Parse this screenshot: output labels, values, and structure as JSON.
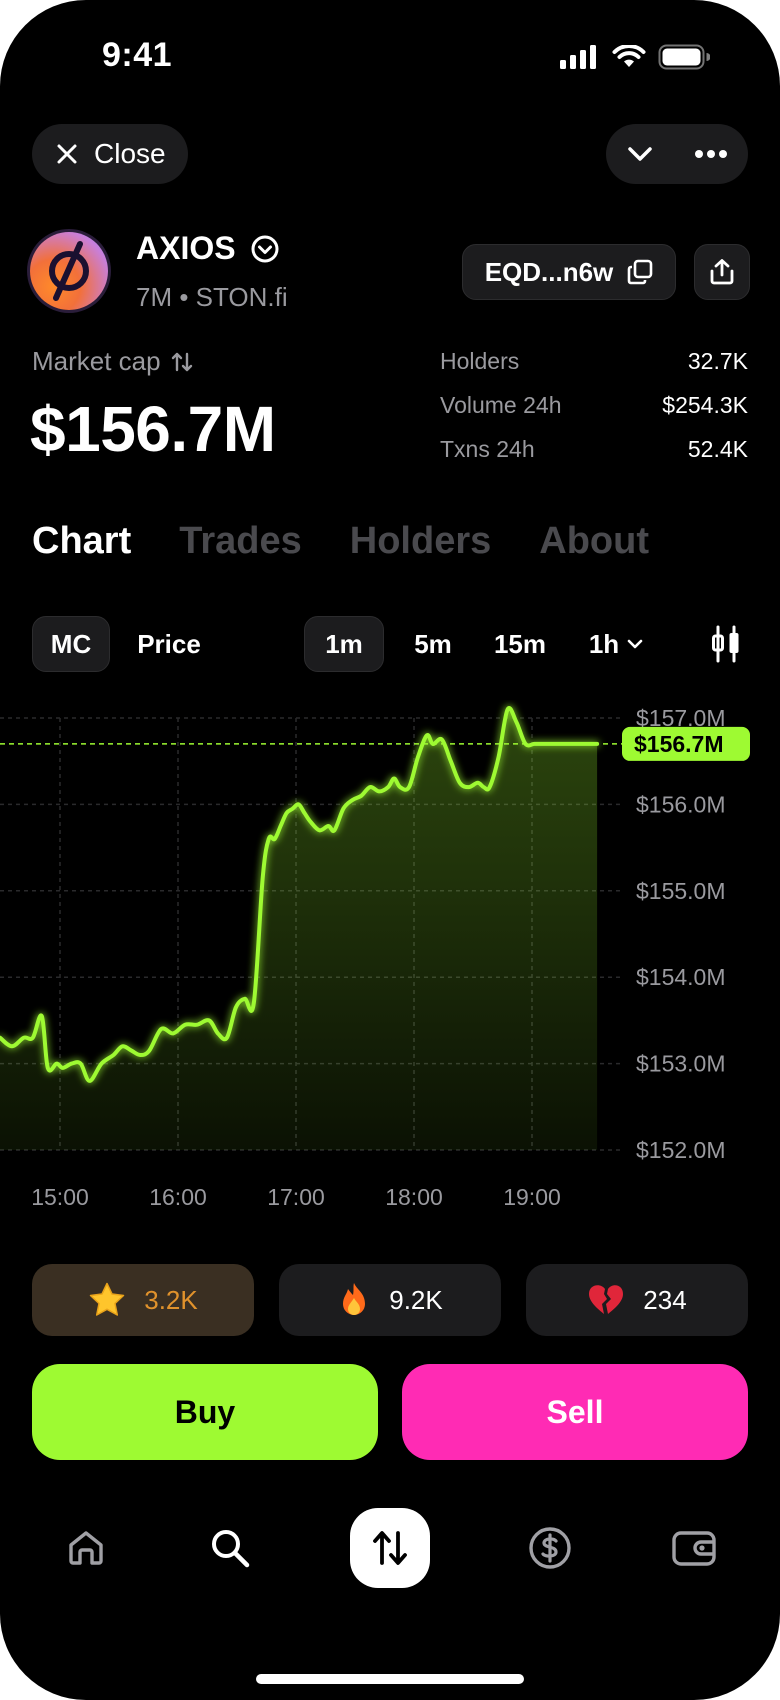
{
  "status_bar": {
    "time": "9:41"
  },
  "top": {
    "close_label": "Close"
  },
  "token": {
    "name": "AXIOS",
    "sub": "7M • STON.fi",
    "address": "EQD...n6w"
  },
  "market": {
    "label": "Market cap",
    "value": "$156.7M",
    "stats": [
      {
        "key": "Holders",
        "value": "32.7K"
      },
      {
        "key": "Volume 24h",
        "value": "$254.3K"
      },
      {
        "key": "Txns 24h",
        "value": "52.4K"
      }
    ]
  },
  "tabs": [
    "Chart",
    "Trades",
    "Holders",
    "About"
  ],
  "chart_controls": {
    "mode": [
      "MC",
      "Price"
    ],
    "timeframes": [
      "1m",
      "5m",
      "15m",
      "1h"
    ]
  },
  "chart_data": {
    "type": "area",
    "series_color": "#9efa32",
    "x": [
      0,
      0.02,
      0.04,
      0.055,
      0.07,
      0.08,
      0.095,
      0.105,
      0.12,
      0.135,
      0.15,
      0.17,
      0.19,
      0.205,
      0.22,
      0.235,
      0.25,
      0.27,
      0.29,
      0.31,
      0.33,
      0.35,
      0.365,
      0.38,
      0.395,
      0.41,
      0.425,
      0.44,
      0.45,
      0.46,
      0.47,
      0.48,
      0.49,
      0.5,
      0.51,
      0.52,
      0.535,
      0.55,
      0.56,
      0.575,
      0.59,
      0.605,
      0.62,
      0.635,
      0.65,
      0.66,
      0.67,
      0.685,
      0.7,
      0.715,
      0.725,
      0.74,
      0.755,
      0.77,
      0.785,
      0.8,
      0.81,
      0.82,
      0.835,
      0.85,
      0.865,
      0.88,
      0.895,
      0.91,
      0.925,
      0.94,
      0.955,
      0.97,
      0.985,
      1.0
    ],
    "y": [
      153.3,
      153.2,
      153.3,
      153.3,
      153.55,
      152.95,
      153.0,
      152.95,
      153.0,
      153.0,
      152.8,
      153.0,
      153.1,
      153.2,
      153.15,
      153.1,
      153.15,
      153.4,
      153.35,
      153.45,
      153.45,
      153.5,
      153.35,
      153.3,
      153.65,
      153.75,
      153.7,
      155.15,
      155.6,
      155.6,
      155.75,
      155.9,
      155.95,
      156.0,
      155.9,
      155.8,
      155.7,
      155.75,
      155.7,
      155.95,
      156.05,
      156.1,
      156.2,
      156.15,
      156.2,
      156.3,
      156.2,
      156.2,
      156.55,
      156.8,
      156.7,
      156.75,
      156.5,
      156.25,
      156.2,
      156.25,
      156.2,
      156.2,
      156.55,
      157.1,
      156.95,
      156.7,
      156.7,
      156.7,
      156.7,
      156.7,
      156.7,
      156.7,
      156.7,
      156.7
    ],
    "x_labels": [
      "15:00",
      "16:00",
      "17:00",
      "18:00",
      "19:00"
    ],
    "y_labels": [
      "$157.0M",
      "$156.0M",
      "$155.0M",
      "$154.0M",
      "$153.0M",
      "$152.0M"
    ],
    "ylim": [
      152.0,
      157.0
    ],
    "current_label": "$156.7M",
    "current_value": 156.7
  },
  "reactions": [
    {
      "icon": "star-icon",
      "count": "3.2K"
    },
    {
      "icon": "fire-icon",
      "count": "9.2K"
    },
    {
      "icon": "broken-heart-icon",
      "count": "234"
    }
  ],
  "actions": {
    "buy": "Buy",
    "sell": "Sell"
  },
  "colors": {
    "buy": "#9efa32",
    "sell": "#ff2bb4",
    "background": "#000000"
  }
}
